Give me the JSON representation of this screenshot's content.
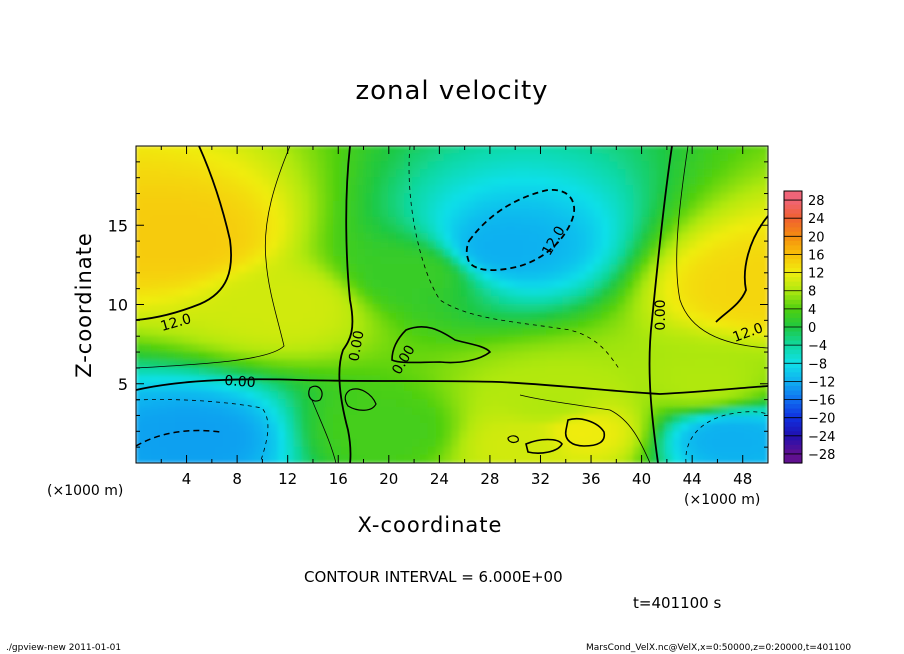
{
  "chart_data": {
    "type": "heatmap",
    "title": "zonal velocity",
    "xlabel": "X-coordinate",
    "ylabel": "Z-coordinate",
    "x_unit_left": "(×1000 m)",
    "x_unit_right": "(×1000 m)",
    "xlim": [
      0,
      50
    ],
    "ylim": [
      0,
      20
    ],
    "x_ticks": [
      "4",
      "8",
      "12",
      "16",
      "20",
      "24",
      "28",
      "32",
      "36",
      "40",
      "44",
      "48"
    ],
    "y_ticks": [
      "5",
      "10",
      "15"
    ],
    "colorbar_ticks": [
      "28",
      "24",
      "20",
      "16",
      "12",
      "8",
      "4",
      "0",
      "−4",
      "−8",
      "−12",
      "−16",
      "−20",
      "−24",
      "−28"
    ],
    "contour_interval": 6.0,
    "contour_labels": [
      "12.0",
      "12.0",
      "12.0",
      "0.00",
      "0.00",
      "0.00",
      "0.00"
    ],
    "features": [
      {
        "x": 3.5,
        "z": 14,
        "value": 15
      },
      {
        "x": 49.5,
        "z": 11,
        "value": 14
      },
      {
        "x": 29,
        "z": 13.5,
        "value": -12
      },
      {
        "x": 5,
        "z": 1.5,
        "value": -13
      },
      {
        "x": 47,
        "z": 1.5,
        "value": -12
      },
      {
        "x": 35,
        "z": 2,
        "value": 12
      },
      {
        "x": 31,
        "z": 1.2,
        "value": 10
      },
      {
        "x": 45,
        "z": 5,
        "value": 8
      },
      {
        "x": 33,
        "z": 3.5,
        "value": 8
      },
      {
        "x": 12,
        "z": 10,
        "value": 10
      },
      {
        "x": 20,
        "z": 2,
        "value": 3
      },
      {
        "x": 22,
        "z": 12,
        "value": 2
      }
    ]
  },
  "annotations": {
    "contour_text": "CONTOUR INTERVAL = 6.000E+00",
    "time_text": "t=401100 s",
    "footer_left": "./gpview-new   2011-01-01",
    "footer_right": "MarsCond_VelX.nc@VelX,x=0:50000,z=0:20000,t=401100"
  },
  "colors": {
    "positive_max": "#f04850",
    "positive_mid": "#f5a400",
    "zero": "#20c840",
    "negative_mid": "#10d0f0",
    "negative_max": "#601090"
  }
}
